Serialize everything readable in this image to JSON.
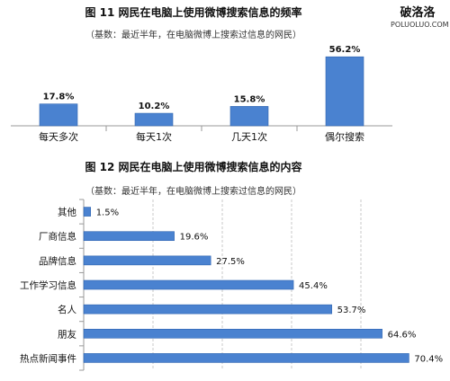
{
  "charts": [
    {
      "title": "图  11 网民在电脑上使用微博搜索信息的频率",
      "subtitle": "（基数：最近半年，在电脑微博上搜索过信息的网民）",
      "chart_data": {
        "type": "bar",
        "categories": [
          "每天多次",
          "每天1次",
          "几天1次",
          "偶尔搜索"
        ],
        "values": [
          17.8,
          10.2,
          15.8,
          56.2
        ],
        "value_labels": [
          "17.8%",
          "10.2%",
          "15.8%",
          "56.2%"
        ],
        "ylim": [
          0,
          60
        ],
        "bar_color": "#4a82d0"
      }
    },
    {
      "title": "图  12 网民在电脑上使用微博搜索信息的内容",
      "subtitle": "（基数：最近半年，在电脑微博上搜索过信息的网民）",
      "chart_data": {
        "type": "bar",
        "orientation": "horizontal",
        "categories": [
          "其他",
          "厂商信息",
          "品牌信息",
          "工作学习信息",
          "名人",
          "朋友",
          "热点新闻事件"
        ],
        "values": [
          1.5,
          19.6,
          27.5,
          45.4,
          53.7,
          64.6,
          70.4
        ],
        "value_labels": [
          "1.5%",
          "19.6%",
          "27.5%",
          "45.4%",
          "53.7%",
          "64.6%",
          "70.4%"
        ],
        "xlim": [
          0,
          75
        ],
        "grid": true,
        "bar_color": "#4a82d0"
      }
    }
  ],
  "watermark": {
    "site_cn": "破洛洛",
    "site_en": "POLUOLUO.COM"
  }
}
